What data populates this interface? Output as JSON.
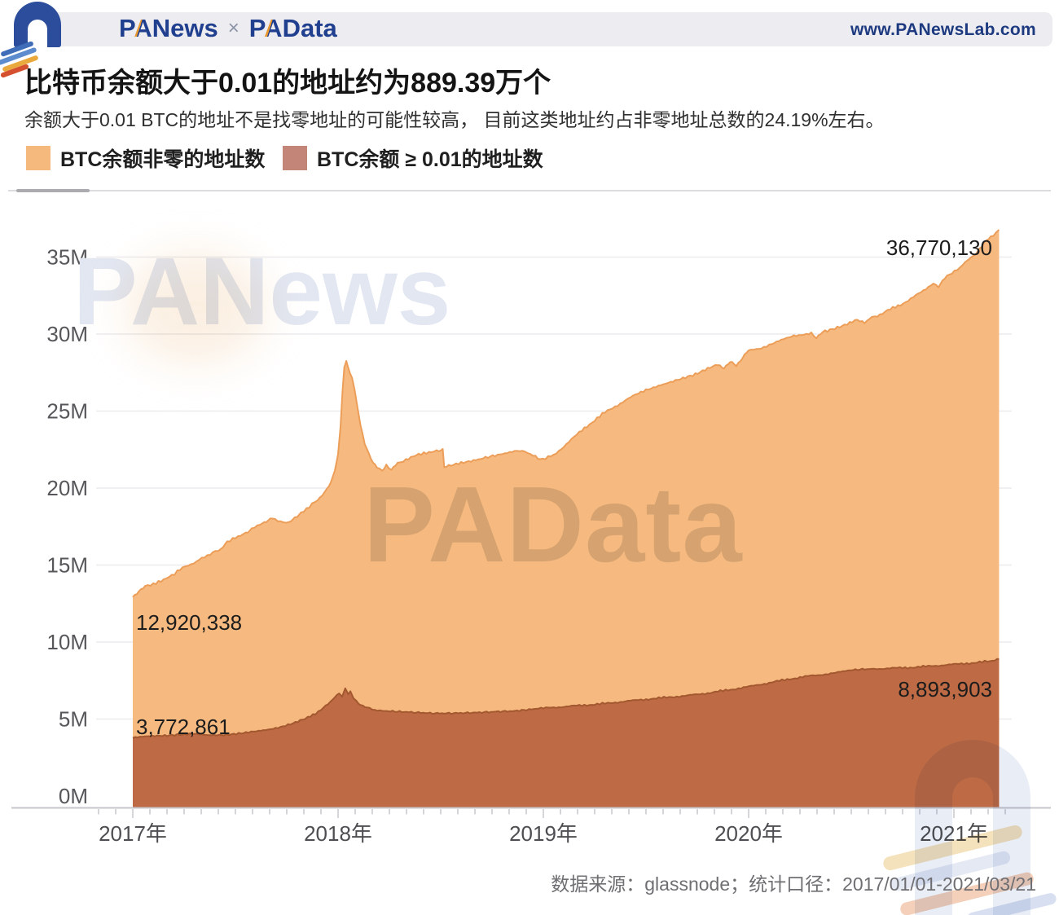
{
  "header": {
    "brand_p": "P",
    "brand_a": "A",
    "brand_rest": "News",
    "separator": "×",
    "brand2_p": "P",
    "brand2_a": "A",
    "brand2_rest": "Data",
    "site": "www.PANewsLab.com"
  },
  "title": "比特币余额大于0.01的地址约为889.39万个",
  "subtitle": "余额大于0.01 BTC的地址不是找零地址的可能性较高， 目前这类地址约占非零地址总数的24.19%左右。",
  "legend": [
    {
      "label": "BTC余额非零的地址数",
      "color": "#f5b87d"
    },
    {
      "label": "BTC余额 ≥ 0.01的地址数",
      "color": "#c28577"
    }
  ],
  "watermarks": {
    "chart_top": "PANews",
    "chart_center": "PAData"
  },
  "footer": {
    "source_line": "数据来源：glassnode；统计口径：2017/01/01-2021/03/21"
  },
  "chart_data": {
    "type": "area",
    "x_axis": {
      "tick_labels": [
        "2017年",
        "2018年",
        "2019年",
        "2020年",
        "2021年"
      ],
      "tick_years": [
        2017,
        2018,
        2019,
        2020,
        2021
      ],
      "range": [
        2017.0,
        2021.22
      ]
    },
    "y_axis": {
      "tick_labels": [
        "0M",
        "5M",
        "10M",
        "15M",
        "20M",
        "25M",
        "30M",
        "35M"
      ],
      "tick_values": [
        0,
        5,
        10,
        15,
        20,
        25,
        30,
        35
      ],
      "unit": "millions of addresses",
      "range": [
        0,
        37.5
      ]
    },
    "annotations": [
      {
        "text": "12,920,338"
      },
      {
        "text": "3,772,861"
      },
      {
        "text": "36,770,130"
      },
      {
        "text": "8,893,903"
      }
    ],
    "series": [
      {
        "name": "BTC余额非零的地址数",
        "fill": "#f6ba80",
        "stroke": "#ec9e59",
        "first_value": 12920338,
        "last_value": 36770130,
        "points_year_millions": [
          [
            2017.0,
            12.92
          ],
          [
            2017.03,
            13.35
          ],
          [
            2017.06,
            13.6
          ],
          [
            2017.1,
            13.8
          ],
          [
            2017.15,
            14.0
          ],
          [
            2017.19,
            14.35
          ],
          [
            2017.23,
            14.7
          ],
          [
            2017.27,
            15.0
          ],
          [
            2017.31,
            15.2
          ],
          [
            2017.35,
            15.55
          ],
          [
            2017.39,
            15.8
          ],
          [
            2017.43,
            16.0
          ],
          [
            2017.46,
            16.45
          ],
          [
            2017.5,
            16.8
          ],
          [
            2017.55,
            17.1
          ],
          [
            2017.58,
            17.4
          ],
          [
            2017.62,
            17.65
          ],
          [
            2017.65,
            17.85
          ],
          [
            2017.68,
            18.0
          ],
          [
            2017.72,
            17.85
          ],
          [
            2017.76,
            17.7
          ],
          [
            2017.79,
            18.1
          ],
          [
            2017.82,
            18.4
          ],
          [
            2017.86,
            18.8
          ],
          [
            2017.9,
            19.2
          ],
          [
            2017.935,
            19.7
          ],
          [
            2017.965,
            20.3
          ],
          [
            2017.985,
            21.2
          ],
          [
            2018.0,
            22.1
          ],
          [
            2018.012,
            24.0
          ],
          [
            2018.022,
            26.3
          ],
          [
            2018.03,
            27.8
          ],
          [
            2018.04,
            28.3
          ],
          [
            2018.048,
            27.9
          ],
          [
            2018.058,
            27.4
          ],
          [
            2018.068,
            27.2
          ],
          [
            2018.08,
            26.4
          ],
          [
            2018.095,
            25.2
          ],
          [
            2018.11,
            24.1
          ],
          [
            2018.13,
            22.9
          ],
          [
            2018.15,
            22.2
          ],
          [
            2018.17,
            21.7
          ],
          [
            2018.19,
            21.4
          ],
          [
            2018.215,
            21.15
          ],
          [
            2018.235,
            21.5
          ],
          [
            2018.26,
            21.2
          ],
          [
            2018.29,
            21.6
          ],
          [
            2018.33,
            21.85
          ],
          [
            2018.38,
            22.1
          ],
          [
            2018.43,
            22.3
          ],
          [
            2018.48,
            22.45
          ],
          [
            2018.51,
            22.5
          ],
          [
            2018.517,
            21.35
          ],
          [
            2018.55,
            21.45
          ],
          [
            2018.6,
            21.6
          ],
          [
            2018.66,
            21.8
          ],
          [
            2018.73,
            22.05
          ],
          [
            2018.8,
            22.25
          ],
          [
            2018.86,
            22.4
          ],
          [
            2018.91,
            22.35
          ],
          [
            2018.95,
            22.15
          ],
          [
            2018.985,
            21.9
          ],
          [
            2019.01,
            21.9
          ],
          [
            2019.05,
            22.15
          ],
          [
            2019.1,
            22.7
          ],
          [
            2019.15,
            23.3
          ],
          [
            2019.2,
            23.9
          ],
          [
            2019.25,
            24.4
          ],
          [
            2019.3,
            24.9
          ],
          [
            2019.35,
            25.3
          ],
          [
            2019.4,
            25.7
          ],
          [
            2019.45,
            26.05
          ],
          [
            2019.5,
            26.4
          ],
          [
            2019.56,
            26.65
          ],
          [
            2019.62,
            26.85
          ],
          [
            2019.68,
            27.1
          ],
          [
            2019.74,
            27.4
          ],
          [
            2019.8,
            27.8
          ],
          [
            2019.85,
            28.0
          ],
          [
            2019.88,
            27.85
          ],
          [
            2019.91,
            28.2
          ],
          [
            2019.94,
            27.95
          ],
          [
            2019.97,
            28.45
          ],
          [
            2020.0,
            28.9
          ],
          [
            2020.05,
            29.05
          ],
          [
            2020.1,
            29.3
          ],
          [
            2020.16,
            29.6
          ],
          [
            2020.22,
            29.85
          ],
          [
            2020.27,
            30.0
          ],
          [
            2020.305,
            30.1
          ],
          [
            2020.33,
            29.75
          ],
          [
            2020.36,
            30.15
          ],
          [
            2020.42,
            30.4
          ],
          [
            2020.48,
            30.65
          ],
          [
            2020.53,
            30.9
          ],
          [
            2020.565,
            30.7
          ],
          [
            2020.6,
            31.1
          ],
          [
            2020.64,
            31.25
          ],
          [
            2020.69,
            31.6
          ],
          [
            2020.74,
            31.9
          ],
          [
            2020.79,
            32.3
          ],
          [
            2020.84,
            32.7
          ],
          [
            2020.875,
            33.0
          ],
          [
            2020.9,
            33.3
          ],
          [
            2020.925,
            33.1
          ],
          [
            2020.955,
            33.6
          ],
          [
            2020.99,
            33.95
          ],
          [
            2021.03,
            34.35
          ],
          [
            2021.07,
            34.8
          ],
          [
            2021.11,
            35.3
          ],
          [
            2021.15,
            35.9
          ],
          [
            2021.18,
            36.3
          ],
          [
            2021.205,
            36.55
          ],
          [
            2021.22,
            36.77
          ]
        ]
      },
      {
        "name": "BTC余额 ≥ 0.01的地址数",
        "fill": "#bd6a45",
        "stroke": "#a3582f",
        "first_value": 3772861,
        "last_value": 8893903,
        "points_year_millions": [
          [
            2017.0,
            3.77
          ],
          [
            2017.06,
            3.85
          ],
          [
            2017.12,
            3.92
          ],
          [
            2017.18,
            3.97
          ],
          [
            2017.24,
            4.0
          ],
          [
            2017.3,
            4.02
          ],
          [
            2017.36,
            3.95
          ],
          [
            2017.42,
            3.98
          ],
          [
            2017.48,
            4.02
          ],
          [
            2017.54,
            4.08
          ],
          [
            2017.6,
            4.18
          ],
          [
            2017.66,
            4.32
          ],
          [
            2017.72,
            4.5
          ],
          [
            2017.78,
            4.72
          ],
          [
            2017.84,
            5.0
          ],
          [
            2017.89,
            5.35
          ],
          [
            2017.93,
            5.75
          ],
          [
            2017.96,
            6.1
          ],
          [
            2017.985,
            6.45
          ],
          [
            2018.005,
            6.65
          ],
          [
            2018.02,
            6.45
          ],
          [
            2018.035,
            6.95
          ],
          [
            2018.05,
            6.6
          ],
          [
            2018.06,
            6.75
          ],
          [
            2018.075,
            6.4
          ],
          [
            2018.09,
            6.15
          ],
          [
            2018.11,
            5.95
          ],
          [
            2018.14,
            5.75
          ],
          [
            2018.18,
            5.6
          ],
          [
            2018.23,
            5.5
          ],
          [
            2018.3,
            5.45
          ],
          [
            2018.38,
            5.4
          ],
          [
            2018.46,
            5.35
          ],
          [
            2018.54,
            5.35
          ],
          [
            2018.62,
            5.38
          ],
          [
            2018.7,
            5.42
          ],
          [
            2018.78,
            5.48
          ],
          [
            2018.86,
            5.52
          ],
          [
            2018.93,
            5.6
          ],
          [
            2019.0,
            5.7
          ],
          [
            2019.1,
            5.8
          ],
          [
            2019.2,
            5.9
          ],
          [
            2019.3,
            6.0
          ],
          [
            2019.4,
            6.15
          ],
          [
            2019.5,
            6.28
          ],
          [
            2019.6,
            6.4
          ],
          [
            2019.7,
            6.52
          ],
          [
            2019.8,
            6.68
          ],
          [
            2019.9,
            6.88
          ],
          [
            2020.0,
            7.1
          ],
          [
            2020.1,
            7.35
          ],
          [
            2020.2,
            7.6
          ],
          [
            2020.3,
            7.8
          ],
          [
            2020.4,
            7.95
          ],
          [
            2020.52,
            8.2
          ],
          [
            2020.6,
            8.25
          ],
          [
            2020.7,
            8.3
          ],
          [
            2020.8,
            8.35
          ],
          [
            2020.9,
            8.45
          ],
          [
            2021.0,
            8.55
          ],
          [
            2021.1,
            8.65
          ],
          [
            2021.15,
            8.72
          ],
          [
            2021.19,
            8.8
          ],
          [
            2021.22,
            8.89
          ]
        ]
      }
    ]
  }
}
